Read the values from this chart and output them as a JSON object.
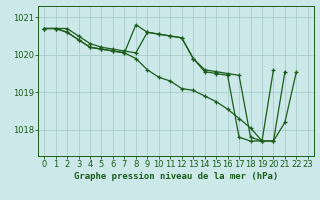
{
  "title": "Graphe pression niveau de la mer (hPa)",
  "bg_color": "#cce8e8",
  "grid_color": "#aacccc",
  "line_color": "#1a5c1a",
  "ylim": [
    1017.3,
    1021.3
  ],
  "yticks": [
    1018,
    1019,
    1020,
    1021
  ],
  "x_labels": [
    "0",
    "1",
    "2",
    "3",
    "4",
    "5",
    "6",
    "7",
    "8",
    "9",
    "10",
    "11",
    "12",
    "13",
    "14",
    "15",
    "16",
    "17",
    "18",
    "19",
    "20",
    "21",
    "22",
    "23"
  ],
  "series": [
    [
      1020.7,
      1020.7,
      1020.6,
      1020.4,
      1020.2,
      1020.15,
      1020.1,
      1020.05,
      1020.8,
      1020.6,
      1020.55,
      1020.5,
      1020.45,
      1019.9,
      1019.55,
      1019.5,
      1019.45,
      1017.8,
      1017.7,
      1017.7,
      1019.6,
      null,
      null,
      null
    ],
    [
      1020.7,
      1020.7,
      1020.6,
      1020.4,
      1020.2,
      1020.15,
      1020.1,
      1020.05,
      1019.9,
      1019.6,
      1019.4,
      1019.3,
      1019.1,
      1019.05,
      1018.9,
      1018.75,
      1018.55,
      1018.3,
      1018.05,
      1017.7,
      1017.7,
      1018.2,
      1019.55,
      null
    ],
    [
      1020.7,
      1020.7,
      1020.7,
      1020.5,
      1020.3,
      1020.2,
      1020.15,
      1020.1,
      1020.05,
      1020.6,
      1020.55,
      1020.5,
      1020.45,
      1019.9,
      1019.6,
      1019.55,
      1019.5,
      1019.45,
      1017.8,
      1017.7,
      1017.7,
      1019.55,
      null,
      null
    ]
  ]
}
